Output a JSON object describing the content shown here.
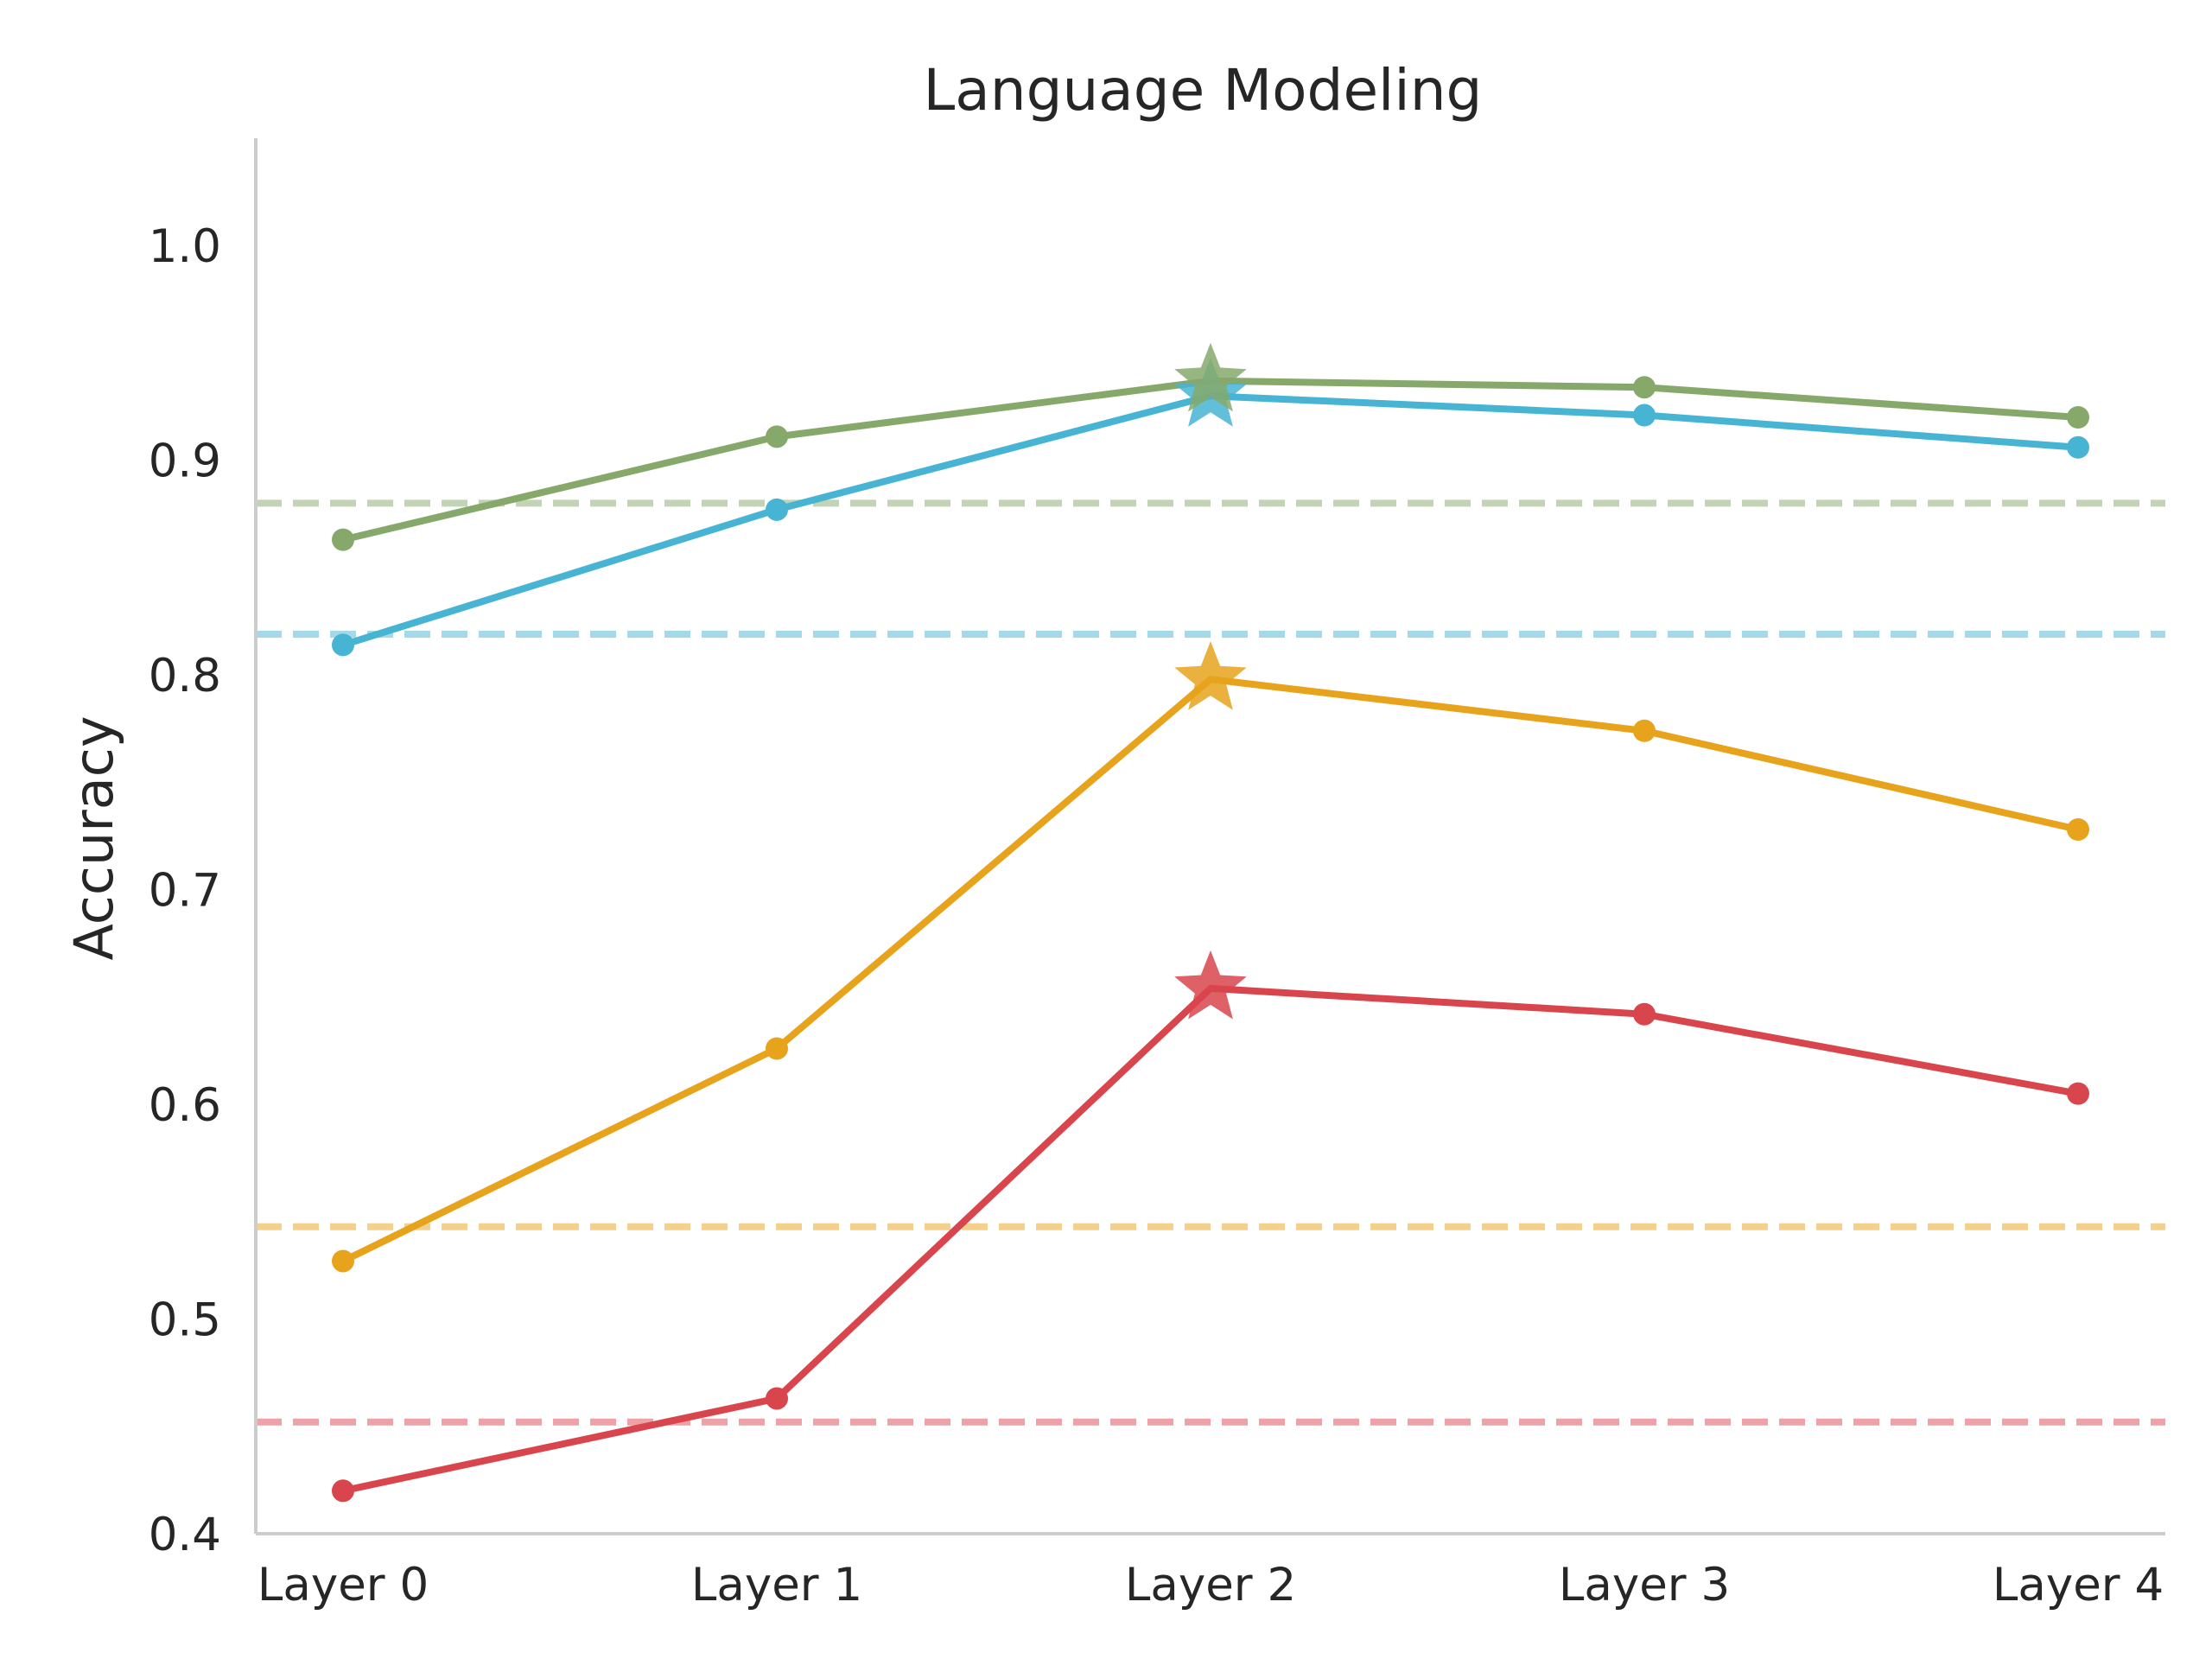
{
  "chart_data": {
    "type": "line",
    "title": "Language Modeling",
    "xlabel": "",
    "ylabel": "Accuracy",
    "categories": [
      "Layer 0",
      "Layer 1",
      "Layer 2",
      "Layer 3",
      "Layer 4"
    ],
    "ylim": [
      0.4,
      1.05
    ],
    "yticks": [
      0.4,
      0.5,
      0.6,
      0.7,
      0.8,
      0.9,
      1.0
    ],
    "ytick_labels": [
      "0.4",
      "0.5",
      "0.6",
      "0.7",
      "0.8",
      "0.9",
      "1.0"
    ],
    "grid": false,
    "legend": "none",
    "series": [
      {
        "color": "#86a96b",
        "values": [
          0.863,
          0.911,
          0.937,
          0.934,
          0.92
        ],
        "baseline": 0.88,
        "best_index": 2
      },
      {
        "color": "#47b4d4",
        "values": [
          0.814,
          0.877,
          0.93,
          0.921,
          0.906
        ],
        "baseline": 0.819,
        "best_index": 2
      },
      {
        "color": "#e8a31c",
        "values": [
          0.527,
          0.626,
          0.798,
          0.774,
          0.728
        ],
        "baseline": 0.543,
        "best_index": 2
      },
      {
        "color": "#d9454d",
        "values": [
          0.42,
          0.463,
          0.654,
          0.642,
          0.605
        ],
        "baseline": 0.452,
        "best_index": 2
      }
    ]
  }
}
